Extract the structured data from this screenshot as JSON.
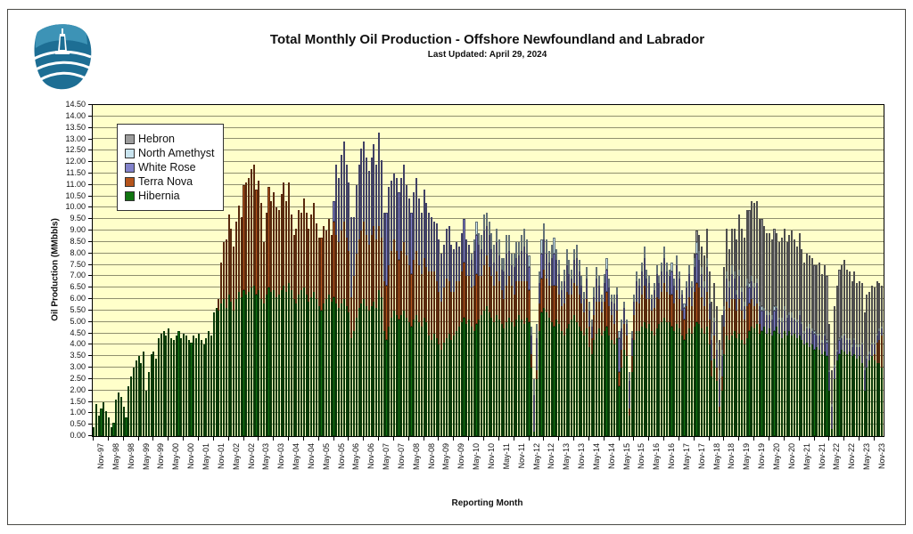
{
  "page": {
    "title": "Total Monthly Oil Production - Offshore Newfoundland and Labrador",
    "subtitle": "Last Updated: April 29, 2024"
  },
  "logo": {
    "name": "cnlopb-board-logo"
  },
  "chart_data": {
    "type": "bar",
    "stacked": true,
    "title": "Total Monthly Oil Production - Offshore Newfoundland and Labrador",
    "subtitle": "Last Updated: April 29, 2024",
    "xlabel": "Reporting Month",
    "ylabel": "Oil Production (MMbbls)",
    "ylim": [
      0,
      14.5
    ],
    "ytick_step": 0.5,
    "grid": true,
    "plot_bg": "#ffffca",
    "grid_color": "#8f8f6e",
    "legend_position": "top-left-inside",
    "x_start": "1997-11",
    "x_end": "2024-02",
    "months_total": 316,
    "x_tick_every_months": 6,
    "x_tick_labels": [
      "Nov-97",
      "May-98",
      "Nov-98",
      "May-99",
      "Nov-99",
      "May-00",
      "Nov-00",
      "May-01",
      "Nov-01",
      "May-02",
      "Nov-02",
      "May-03",
      "Nov-03",
      "May-04",
      "Nov-04",
      "May-05",
      "Nov-05",
      "May-06",
      "Nov-06",
      "May-07",
      "Nov-07",
      "May-08",
      "Nov-08",
      "May-09",
      "Nov-09",
      "May-10",
      "Nov-10",
      "May-11",
      "Nov-11",
      "May-12",
      "Nov-12",
      "May-13",
      "Nov-13",
      "May-14",
      "Nov-14",
      "May-15",
      "Nov-15",
      "May-16",
      "Nov-16",
      "May-17",
      "Nov-17",
      "May-18",
      "Nov-18",
      "May-19",
      "Nov-19",
      "May-20",
      "Nov-20",
      "May-21",
      "Nov-21",
      "May-22",
      "Nov-22",
      "May-23",
      "Nov-23"
    ],
    "series": [
      {
        "name": "Hibernia",
        "color": "#117511",
        "start_index": 0,
        "values": [
          0.4,
          1.4,
          0.9,
          1.2,
          1.5,
          1.1,
          0.8,
          0.4,
          0.6,
          1.6,
          1.9,
          1.7,
          1.3,
          0.8,
          2.2,
          2.6,
          3.0,
          3.3,
          3.5,
          3.2,
          3.7,
          2.0,
          2.8,
          3.6,
          3.7,
          3.4,
          4.3,
          4.5,
          4.6,
          4.4,
          4.7,
          4.3,
          4.2,
          4.4,
          4.6,
          4.3,
          4.5,
          4.4,
          4.2,
          4.1,
          4.4,
          4.3,
          4.5,
          4.2,
          4.0,
          4.3,
          4.6,
          4.4,
          5.4,
          5.6,
          5.5,
          5.8,
          6.0,
          5.6,
          6.2,
          5.9,
          5.5,
          6.0,
          6.3,
          6.1,
          6.4,
          6.2,
          6.3,
          6.5,
          6.6,
          6.2,
          6.4,
          6.0,
          5.8,
          6.2,
          6.5,
          6.3,
          6.4,
          6.1,
          6.2,
          6.4,
          6.6,
          6.3,
          6.7,
          6.4,
          6.0,
          5.8,
          6.2,
          6.4,
          6.5,
          6.2,
          5.9,
          6.1,
          6.3,
          6.0,
          5.7,
          5.5,
          5.8,
          6.0,
          6.2,
          5.9,
          6.1,
          5.8,
          5.6,
          5.8,
          6.0,
          5.7,
          5.4,
          4.3,
          4.6,
          5.2,
          5.6,
          5.8,
          6.0,
          5.7,
          5.5,
          5.7,
          5.9,
          5.6,
          6.4,
          6.1,
          4.6,
          4.2,
          4.8,
          5.2,
          5.5,
          5.3,
          5.1,
          5.3,
          5.5,
          5.2,
          5.0,
          4.8,
          5.1,
          5.3,
          5.0,
          4.8,
          5.2,
          5.0,
          4.4,
          4.2,
          4.5,
          4.3,
          4.0,
          3.8,
          4.1,
          4.3,
          4.5,
          4.2,
          4.4,
          4.6,
          4.8,
          5.0,
          5.2,
          4.9,
          5.1,
          4.8,
          4.6,
          4.9,
          5.1,
          5.3,
          5.5,
          5.7,
          5.4,
          5.2,
          5.0,
          5.3,
          5.1,
          4.9,
          4.7,
          5.0,
          5.2,
          5.0,
          4.8,
          5.1,
          5.3,
          5.1,
          4.9,
          5.2,
          5.0,
          3.0,
          0.2,
          2.5,
          4.6,
          5.4,
          5.6,
          5.4,
          5.2,
          5.0,
          4.8,
          5.1,
          4.9,
          4.6,
          4.4,
          4.7,
          4.9,
          5.1,
          5.3,
          5.0,
          4.8,
          4.6,
          4.4,
          4.7,
          3.9,
          3.6,
          4.2,
          4.5,
          4.7,
          4.4,
          4.6,
          4.8,
          4.4,
          4.2,
          4.0,
          4.3,
          2.2,
          3.0,
          3.8,
          3.5,
          0.9,
          2.8,
          4.2,
          4.6,
          4.6,
          4.8,
          5.0,
          4.7,
          4.9,
          4.6,
          4.4,
          4.7,
          4.9,
          5.0,
          5.2,
          5.0,
          5.0,
          4.8,
          4.6,
          4.9,
          4.7,
          4.4,
          4.2,
          4.5,
          4.7,
          4.5,
          4.8,
          5.0,
          4.9,
          4.7,
          4.5,
          4.8,
          4.0,
          2.6,
          3.4,
          2.4,
          1.0,
          2.0,
          3.6,
          4.4,
          4.2,
          4.4,
          4.6,
          4.3,
          4.5,
          4.2,
          4.0,
          4.3,
          4.6,
          4.8,
          4.7,
          4.9,
          4.5,
          4.6,
          4.8,
          4.5,
          4.7,
          4.4,
          4.6,
          4.8,
          4.5,
          4.3,
          4.6,
          4.4,
          4.6,
          4.4,
          4.5,
          4.3,
          4.4,
          4.2,
          4.0,
          4.1,
          3.9,
          4.0,
          3.8,
          3.9,
          3.8,
          3.6,
          3.7,
          3.5,
          2.0,
          0.3,
          2.5,
          3.3,
          3.6,
          3.8,
          3.7,
          3.6,
          3.7,
          3.5,
          3.6,
          3.4,
          3.5,
          3.2,
          2.0,
          3.0,
          3.3,
          3.5,
          3.3,
          3.2,
          3.2,
          3.0
        ]
      },
      {
        "name": "Terra Nova",
        "color": "#b5541c",
        "start_index": 50,
        "values": [
          0.5,
          1.8,
          2.5,
          3.0,
          3.5,
          3.2,
          2.8,
          3.4,
          3.8,
          3.5,
          4.6,
          4.9,
          5.0,
          5.2,
          5.3,
          4.6,
          4.8,
          4.2,
          2.7,
          3.6,
          4.4,
          4.0,
          4.3,
          3.9,
          3.7,
          4.2,
          4.5,
          4.0,
          4.4,
          3.3,
          2.8,
          3.3,
          3.7,
          3.4,
          3.9,
          3.6,
          3.2,
          3.6,
          3.9,
          3.3,
          3.0,
          3.2,
          3.4,
          3.0,
          3.3,
          2.9,
          3.3,
          3.0,
          2.9,
          3.2,
          3.4,
          3.0,
          2.7,
          1.8,
          2.4,
          2.8,
          3.0,
          3.2,
          3.4,
          3.1,
          2.9,
          3.1,
          3.3,
          3.0,
          2.8,
          2.6,
          2.2,
          2.4,
          2.7,
          2.9,
          3.1,
          2.8,
          2.6,
          2.8,
          3.0,
          2.7,
          2.5,
          2.3,
          2.6,
          2.8,
          2.5,
          2.3,
          2.6,
          2.4,
          2.8,
          3.0,
          2.7,
          2.5,
          2.3,
          2.1,
          2.4,
          2.6,
          2.3,
          2.1,
          1.9,
          2.2,
          2.0,
          2.2,
          2.4,
          2.1,
          1.9,
          1.7,
          2.0,
          2.2,
          1.9,
          1.7,
          2.0,
          2.2,
          2.0,
          1.8,
          1.6,
          1.9,
          1.7,
          1.5,
          1.3,
          1.6,
          1.8,
          1.6,
          1.4,
          1.7,
          1.5,
          1.7,
          1.9,
          1.6,
          1.4,
          0.6,
          0,
          0.4,
          1.2,
          1.5,
          1.7,
          1.5,
          1.4,
          1.6,
          1.8,
          1.5,
          1.3,
          1.1,
          1.4,
          1.6,
          1.3,
          1.1,
          1.4,
          1.6,
          1.4,
          1.2,
          1.0,
          1.3,
          0.9,
          0.7,
          1.1,
          1.4,
          1.2,
          1.0,
          1.3,
          1.5,
          1.3,
          1.1,
          0.9,
          1.2,
          0.6,
          0.8,
          1.1,
          0.9,
          0.3,
          0.7,
          1.1,
          1.3,
          1.2,
          1.4,
          1.6,
          1.3,
          1.1,
          0.9,
          1.2,
          1.4,
          1.1,
          1.3,
          1.5,
          1.3,
          1.2,
          1.4,
          1.2,
          1.5,
          1.3,
          1.1,
          0.9,
          1.2,
          1.4,
          1.2,
          1.5,
          1.7,
          1.6,
          1.4,
          1.2,
          1.5,
          1.1,
          0.7,
          1.0,
          0.6,
          0.3,
          0.6,
          1.2,
          1.5,
          1.4,
          1.6,
          1.4,
          1.2,
          1.5,
          1.3,
          1.1,
          1.4,
          1.2,
          1.2,
          1.0,
          0.9,
          0.4,
          0,
          0,
          0,
          0,
          0,
          0,
          0,
          0,
          0,
          0,
          0,
          0,
          0,
          0,
          0,
          0,
          0,
          0,
          0,
          0,
          0,
          0,
          0,
          0,
          0,
          0,
          0,
          0,
          0,
          0,
          0,
          0,
          0,
          0,
          0,
          0,
          0,
          0,
          0,
          0,
          0,
          0,
          0,
          0,
          0,
          0.3,
          0.9,
          1.0,
          1.4
        ]
      },
      {
        "name": "White Rose",
        "color": "#8282cb",
        "start_index": 96,
        "values": [
          0.9,
          3.1,
          2.8,
          3.3,
          3.5,
          3.2,
          3.0,
          3.5,
          2.6,
          3.0,
          3.3,
          3.6,
          3.5,
          3.4,
          3.2,
          3.4,
          3.6,
          3.3,
          4.1,
          3.4,
          3.0,
          3.2,
          3.4,
          3.1,
          2.9,
          3.2,
          3.0,
          3.2,
          3.4,
          3.1,
          2.9,
          2.7,
          3.0,
          3.2,
          2.9,
          2.7,
          3.0,
          2.8,
          2.6,
          2.4,
          2.2,
          2.5,
          2.3,
          2.1,
          1.9,
          2.2,
          2.4,
          2.1,
          1.9,
          1.7,
          1.5,
          1.7,
          1.9,
          1.6,
          1.4,
          1.2,
          1.5,
          1.7,
          1.4,
          1.2,
          1.5,
          1.3,
          1.4,
          1.2,
          1.0,
          1.3,
          1.1,
          0.9,
          1.2,
          1.4,
          1.1,
          0.9,
          1.2,
          1.0,
          1.1,
          1.3,
          1.5,
          1.2,
          1.0,
          0.8,
          1.6,
          1.4,
          0.9,
          1.1,
          1.3,
          1.1,
          1.0,
          1.2,
          1.4,
          1.1,
          0.9,
          0.7,
          1.0,
          1.2,
          0.9,
          0.7,
          1.0,
          1.2,
          1.0,
          0.8,
          0.6,
          0.9,
          0.7,
          0.5,
          0.8,
          1.0,
          0.7,
          0.5,
          0.8,
          1.0,
          0.8,
          0.6,
          0.9,
          0.7,
          1.5,
          0.9,
          0.7,
          0.5,
          1.2,
          0.8,
          0.6,
          0.9,
          0.8,
          1.0,
          1.2,
          0.9,
          0.7,
          0.5,
          0.8,
          1.0,
          0.7,
          0.9,
          1.1,
          0.9,
          0.8,
          1.0,
          0.8,
          1.1,
          0.9,
          0.7,
          0.5,
          0.8,
          1.0,
          0.8,
          1.1,
          1.3,
          1.2,
          1.0,
          0.8,
          1.1,
          0.7,
          0.9,
          0.6,
          0.8,
          1.2,
          0.9,
          0.7,
          1.0,
          0.9,
          1.1,
          0.9,
          0.7,
          1.0,
          0.8,
          0.6,
          0.9,
          0.7,
          0.8,
          0.8,
          0.9,
          0.8,
          0.9,
          0.7,
          0.8,
          0.6,
          0.7,
          0.9,
          0.8,
          0.6,
          0.7,
          0.9,
          0.8,
          0.7,
          0.8,
          0.6,
          0.7,
          0.9,
          0.7,
          0.5,
          0.6,
          0.8,
          0.6,
          0.7,
          0.5,
          0.6,
          0.5,
          0.7,
          0.6,
          0.8,
          1.0,
          0.5,
          0.4,
          0.6,
          0.5,
          0.7,
          0.6,
          0.5,
          0.4,
          0.6,
          0.5,
          0.4,
          0.8,
          0.9,
          0.4,
          0.3,
          0.5,
          0.4,
          0.3,
          0.4,
          0.3
        ]
      },
      {
        "name": "North Amethyst",
        "color": "#c9e4ef",
        "start_index": 151,
        "values": [
          0.3,
          0.5,
          0.6,
          0.5,
          0.6,
          0.7,
          0.6,
          0.6,
          0.7,
          0.8,
          0.6,
          0.7,
          0.5,
          0.6,
          0.8,
          0.7,
          0.5,
          0.6,
          0.7,
          0.6,
          0.7,
          0.8,
          0.6,
          0.5,
          0.4,
          0.7,
          0.6,
          0.5,
          0.6,
          0.7,
          0.6,
          0.5,
          0.6,
          0.7,
          0.5,
          0.6,
          0.4,
          0.5,
          0.7,
          0.6,
          0.4,
          0.5,
          0.6,
          0.5,
          0.4,
          0.3,
          0.5,
          0.4,
          0.3,
          0.4,
          0.5,
          0.4,
          0.3,
          0.4,
          0.5,
          0.4,
          0.3,
          0.4,
          0.3,
          0.3,
          0.4,
          0.3,
          0.2,
          0.4,
          0.3,
          0.3,
          0.4,
          0.3,
          0.4,
          0.5,
          0.4,
          0.3,
          0.2,
          0.3,
          0.4,
          0.3,
          0.4,
          0.5,
          0.4,
          0.3,
          0.4,
          0.3,
          0.4,
          0.3,
          0.2,
          0.2,
          0.3,
          0.4,
          0.3,
          0.4,
          0.5,
          0.4,
          0.3,
          0.3,
          0.4,
          0.2,
          0.3,
          0.2,
          0.3,
          0.4,
          0.3,
          0.2,
          0.3,
          0.3,
          0.4,
          0.3,
          0.2,
          0.3,
          0.2,
          0.2,
          0.3,
          0.2,
          0.2,
          0.2,
          0.2,
          0.2,
          0.2,
          0.1,
          0.2,
          0.1,
          0.2,
          0.2,
          0.1,
          0.1,
          0.2,
          0.2,
          0.1,
          0.1,
          0.2,
          0.1,
          0.1,
          0.2,
          0.1,
          0.1,
          0.1,
          0.2,
          0.1,
          0.1,
          0.1,
          0.1,
          0.1,
          0.1,
          0.1,
          0.1,
          0.1,
          0.1,
          0.1,
          0.1,
          0.1,
          0.1,
          0.1,
          0.1,
          0.1,
          0.1,
          0.1,
          0.1,
          0.1,
          0.1,
          0.1,
          0.1,
          0.1,
          0.1,
          0.1,
          0.1,
          0.1
        ]
      },
      {
        "name": "Hebron",
        "color": "#9c9c9c",
        "start_index": 240,
        "values": [
          0.2,
          0.5,
          0.7,
          0.9,
          1.1,
          1.3,
          1.2,
          1.4,
          1.5,
          1.6,
          1.3,
          1.5,
          1.7,
          1.9,
          1.4,
          1.6,
          1.9,
          2.2,
          2.4,
          2.6,
          2.8,
          3.0,
          3.2,
          3.3,
          3.5,
          3.4,
          3.6,
          3.8,
          3.6,
          3.4,
          3.5,
          3.3,
          3.4,
          3.2,
          3.3,
          3.5,
          3.4,
          3.2,
          3.4,
          3.6,
          3.4,
          3.2,
          3.4,
          3.2,
          3.0,
          3.2,
          3.0,
          3.1,
          2.9,
          3.0,
          3.1,
          2.9,
          3.0,
          2.8,
          2.0,
          1.5,
          2.6,
          2.8,
          3.0,
          3.1,
          3.2,
          3.0,
          2.9,
          2.8,
          2.9,
          2.7,
          2.8,
          2.6,
          2.4,
          2.7,
          2.6,
          2.5,
          2.4,
          2.3,
          2.0,
          1.8
        ]
      }
    ],
    "legend_order": [
      "Hebron",
      "North Amethyst",
      "White Rose",
      "Terra Nova",
      "Hibernia"
    ]
  }
}
